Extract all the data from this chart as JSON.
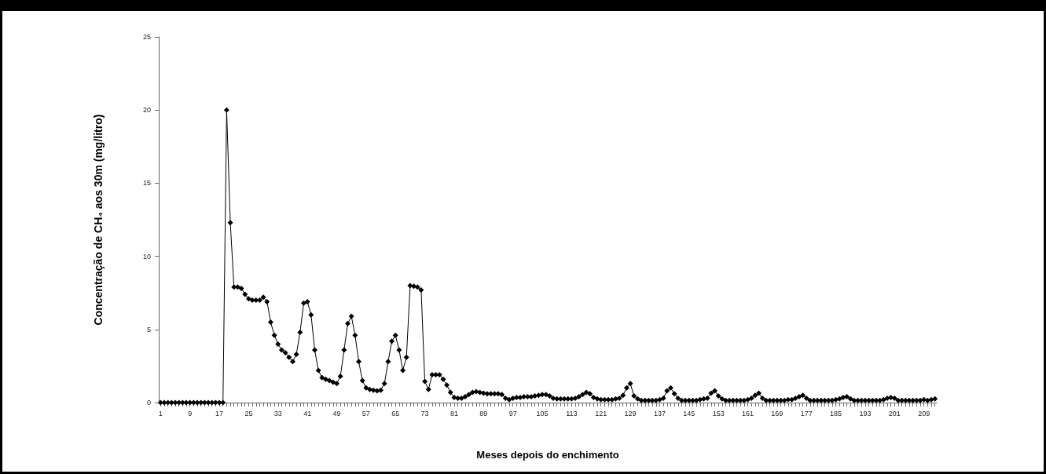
{
  "chart_data": {
    "type": "line",
    "xlabel": "Meses depois do enchimento",
    "ylabel": "Concentração de CH₄ aos 30m (mg/litro)",
    "categories": [
      "1",
      null,
      null,
      null,
      null,
      null,
      null,
      null,
      "9",
      null,
      null,
      null,
      null,
      null,
      null,
      null,
      "17",
      null,
      null,
      null,
      null,
      null,
      null,
      null,
      "25",
      null,
      null,
      null,
      null,
      null,
      null,
      null,
      "33",
      null,
      null,
      null,
      null,
      null,
      null,
      null,
      "41",
      null,
      null,
      null,
      null,
      null,
      null,
      null,
      "49",
      null,
      null,
      null,
      null,
      null,
      null,
      null,
      "57",
      null,
      null,
      null,
      null,
      null,
      null,
      null,
      "65",
      null,
      null,
      null,
      null,
      null,
      null,
      null,
      "73",
      null,
      null,
      null,
      null,
      null,
      null,
      null,
      "81",
      null,
      null,
      null,
      null,
      null,
      null,
      null,
      "89",
      null,
      null,
      null,
      null,
      null,
      null,
      null,
      "97",
      null,
      null,
      null,
      null,
      null,
      null,
      null,
      "105",
      null,
      null,
      null,
      null,
      null,
      null,
      null,
      "113",
      null,
      null,
      null,
      null,
      null,
      null,
      null,
      "121",
      null,
      null,
      null,
      null,
      null,
      null,
      null,
      "129",
      null,
      null,
      null,
      null,
      null,
      null,
      null,
      "137",
      null,
      null,
      null,
      null,
      null,
      null,
      null,
      "145",
      null,
      null,
      null,
      null,
      null,
      null,
      null,
      "153",
      null,
      null,
      null,
      null,
      null,
      null,
      null,
      "161",
      null,
      null,
      null,
      null,
      null,
      null,
      null,
      "169",
      null,
      null,
      null,
      null,
      null,
      null,
      null,
      "177",
      null,
      null,
      null,
      null,
      null,
      null,
      null,
      "185",
      null,
      null,
      null,
      null,
      null,
      null,
      null,
      "193",
      null,
      null,
      null,
      null,
      null,
      null,
      null,
      "201",
      null,
      null,
      null,
      null,
      null,
      null,
      null,
      "209",
      null,
      null,
      null
    ],
    "series": [
      {
        "color": "#000000",
        "values": [
          0,
          0,
          0,
          0,
          0,
          0,
          0,
          0,
          0,
          0,
          0,
          0,
          0,
          0,
          0,
          0,
          0,
          0,
          20,
          12.3,
          7.9,
          7.9,
          7.8,
          7.4,
          7.1,
          7.0,
          7.0,
          7.0,
          7.2,
          6.9,
          5.5,
          4.6,
          4.0,
          3.6,
          3.4,
          3.1,
          2.8,
          3.3,
          4.8,
          6.8,
          6.9,
          6.0,
          3.6,
          2.2,
          1.7,
          1.6,
          1.5,
          1.4,
          1.3,
          1.8,
          3.6,
          5.4,
          5.9,
          4.6,
          2.8,
          1.5,
          1.0,
          0.9,
          0.85,
          0.8,
          0.85,
          1.3,
          2.8,
          4.2,
          4.6,
          3.6,
          2.2,
          3.1,
          8.0,
          7.95,
          7.9,
          7.7,
          1.45,
          0.9,
          1.9,
          1.9,
          1.9,
          1.6,
          1.2,
          0.7,
          0.35,
          0.3,
          0.3,
          0.4,
          0.55,
          0.7,
          0.75,
          0.7,
          0.65,
          0.6,
          0.6,
          0.6,
          0.6,
          0.55,
          0.3,
          0.2,
          0.3,
          0.35,
          0.35,
          0.4,
          0.4,
          0.4,
          0.45,
          0.5,
          0.55,
          0.55,
          0.45,
          0.3,
          0.25,
          0.25,
          0.25,
          0.25,
          0.25,
          0.3,
          0.4,
          0.55,
          0.7,
          0.6,
          0.35,
          0.25,
          0.2,
          0.2,
          0.2,
          0.2,
          0.25,
          0.3,
          0.5,
          1.0,
          1.3,
          0.45,
          0.25,
          0.15,
          0.15,
          0.15,
          0.15,
          0.15,
          0.2,
          0.3,
          0.8,
          1.0,
          0.6,
          0.3,
          0.15,
          0.15,
          0.15,
          0.15,
          0.15,
          0.2,
          0.25,
          0.3,
          0.65,
          0.8,
          0.45,
          0.25,
          0.15,
          0.15,
          0.15,
          0.15,
          0.15,
          0.15,
          0.2,
          0.3,
          0.5,
          0.65,
          0.3,
          0.15,
          0.15,
          0.15,
          0.15,
          0.15,
          0.15,
          0.2,
          0.2,
          0.3,
          0.4,
          0.5,
          0.3,
          0.15,
          0.15,
          0.15,
          0.15,
          0.15,
          0.15,
          0.15,
          0.2,
          0.25,
          0.35,
          0.4,
          0.25,
          0.15,
          0.15,
          0.15,
          0.15,
          0.15,
          0.15,
          0.15,
          0.15,
          0.2,
          0.3,
          0.35,
          0.3,
          0.15,
          0.15,
          0.15,
          0.15,
          0.15,
          0.15,
          0.15,
          0.2,
          0.15,
          0.2,
          0.25
        ]
      }
    ],
    "ylim": [
      0,
      25
    ],
    "yticks": [
      0,
      5,
      10,
      15,
      20,
      25
    ],
    "grid": false,
    "marker": "diamond",
    "line_style": "solid"
  }
}
